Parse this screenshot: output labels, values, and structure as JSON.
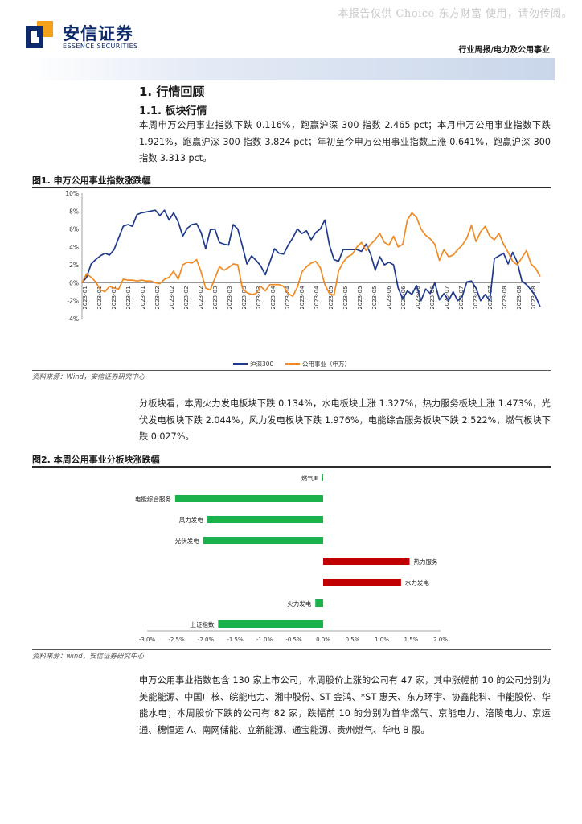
{
  "watermark": "本报告仅供 Choice 东方财富 使用，请勿传阅。",
  "brand": {
    "name_cn": "安信证券",
    "name_en": "ESSENCE SECURITIES"
  },
  "header": {
    "category": "行业周报/电力及公用事业"
  },
  "section": {
    "h1": "1. 行情回顾",
    "h2": "1.1. 板块行情"
  },
  "paragraphs": {
    "p1": "本周申万公用事业指数下跌 0.116%，跑赢沪深 300 指数 2.465 pct；本月申万公用事业指数下跌 1.921%，跑赢沪深 300 指数 3.824 pct；年初至今申万公用事业指数上涨 0.641%，跑赢沪深 300 指数 3.313 pct。",
    "p2": "分板块看，本周火力发电板块下跌 0.134%，水电板块上涨 1.327%，热力服务板块上涨 1.473%，光伏发电板块下跌 2.044%，风力发电板块下跌 1.976%，电能综合服务板块下跌 2.522%，燃气板块下跌 0.027%。",
    "p3": "申万公用事业指数包含 130 家上市公司，本周股价上涨的公司有 47 家，其中涨幅前 10 的公司分别为美能能源、中国广核、皖能电力、湘中股份、ST 金鸿、*ST 惠天、东方环宇、协鑫能科、申能股份、华能水电；本周股价下跌的公司有 82 家，跌幅前 10 的分别为首华燃气、京能电力、涪陵电力、京运通、穗恒运 A、南网储能、立新能源、通宝能源、贵州燃气、华电 B 股。"
  },
  "fig1": {
    "title": "图1. 申万公用事业指数涨跌幅",
    "source": "资料来源：Wind，安信证券研究中心"
  },
  "fig2": {
    "title": "图2. 本周公用事业分板块涨跌幅",
    "source": "资料来源：wind，安信证券研究中心"
  },
  "colors": {
    "hs300": "#1f3a8a",
    "utility": "#f08a24",
    "negative": "#19b24b",
    "positive": "#c00000",
    "brand": "#0d2a6b"
  },
  "chart_data": [
    {
      "type": "line",
      "title": "",
      "ylim": [
        -4,
        10
      ],
      "yticks": [
        "10%",
        "8%",
        "6%",
        "4%",
        "2%",
        "0%",
        "-2%",
        "-4%"
      ],
      "xticks": [
        "2023-01",
        "2023-01",
        "2023-01",
        "2023-01",
        "2023-01",
        "2023-02",
        "2023-02",
        "2023-02",
        "2023-02",
        "2023-03",
        "2023-03",
        "2023-03",
        "2023-03",
        "2023-04",
        "2023-04",
        "2023-04",
        "2023-04",
        "2023-05",
        "2023-05",
        "2023-05",
        "2023-05",
        "2023-06",
        "2023-06",
        "2023-06",
        "2023-06",
        "2023-07",
        "2023-07",
        "2023-07",
        "2023-07",
        "2023-08",
        "2023-08",
        "2023-08"
      ],
      "x_index_max": 100,
      "legend_position": "bottom",
      "series": [
        {
          "name": "沪深300",
          "color": "#1f3a8a",
          "points": [
            [
              0,
              0
            ],
            [
              1,
              0.6
            ],
            [
              2,
              2.1
            ],
            [
              3,
              2.6
            ],
            [
              4,
              3.0
            ],
            [
              5,
              3.3
            ],
            [
              6,
              3.1
            ],
            [
              7,
              3.7
            ],
            [
              8,
              5.0
            ],
            [
              9,
              6.3
            ],
            [
              10,
              6.5
            ],
            [
              11,
              6.3
            ],
            [
              12,
              7.6
            ],
            [
              13,
              7.8
            ],
            [
              14,
              7.9
            ],
            [
              15,
              8.0
            ],
            [
              16,
              8.1
            ],
            [
              17,
              7.5
            ],
            [
              18,
              8.1
            ],
            [
              19,
              7.0
            ],
            [
              20,
              7.8
            ],
            [
              21,
              6.8
            ],
            [
              22,
              5.2
            ],
            [
              23,
              6.1
            ],
            [
              24,
              6.5
            ],
            [
              25,
              6.6
            ],
            [
              26,
              5.6
            ],
            [
              27,
              3.8
            ],
            [
              28,
              5.9
            ],
            [
              29,
              6.0
            ],
            [
              30,
              4.5
            ],
            [
              31,
              4.3
            ],
            [
              32,
              4.2
            ],
            [
              33,
              6.5
            ],
            [
              34,
              6.0
            ],
            [
              35,
              4.1
            ],
            [
              36,
              2.1
            ],
            [
              37,
              3.0
            ],
            [
              38,
              2.5
            ],
            [
              39,
              1.9
            ],
            [
              40,
              0.9
            ],
            [
              41,
              2.3
            ],
            [
              42,
              3.8
            ],
            [
              43,
              3.3
            ],
            [
              44,
              3.2
            ],
            [
              45,
              4.2
            ],
            [
              46,
              5.0
            ],
            [
              47,
              6.0
            ],
            [
              48,
              5.5
            ],
            [
              49,
              5.8
            ],
            [
              50,
              4.8
            ],
            [
              51,
              5.6
            ],
            [
              52,
              6.0
            ],
            [
              53,
              7.0
            ],
            [
              54,
              4.2
            ],
            [
              55,
              2.6
            ],
            [
              56,
              2.4
            ],
            [
              57,
              3.7
            ],
            [
              58,
              3.7
            ],
            [
              59,
              3.7
            ],
            [
              60,
              3.7
            ],
            [
              61,
              3.5
            ],
            [
              62,
              4.3
            ],
            [
              63,
              3.2
            ],
            [
              64,
              1.4
            ],
            [
              65,
              2.9
            ],
            [
              66,
              2.0
            ],
            [
              67,
              2.3
            ],
            [
              68,
              2.0
            ],
            [
              69,
              -0.6
            ],
            [
              70,
              -1.8
            ],
            [
              71,
              -0.9
            ],
            [
              72,
              -1.3
            ],
            [
              73,
              -0.3
            ],
            [
              74,
              -2.0
            ],
            [
              75,
              -0.7
            ],
            [
              76,
              -1.2
            ],
            [
              77,
              0.0
            ],
            [
              78,
              -1.9
            ],
            [
              79,
              -1.2
            ],
            [
              80,
              -2.0
            ],
            [
              81,
              -1.0
            ],
            [
              82,
              -2.0
            ],
            [
              83,
              -1.5
            ],
            [
              84,
              0.1
            ],
            [
              85,
              0.2
            ],
            [
              86,
              -0.6
            ],
            [
              87,
              -2.0
            ],
            [
              88,
              -1.3
            ],
            [
              89,
              -2.0
            ],
            [
              90,
              2.7
            ],
            [
              91,
              3.0
            ],
            [
              92,
              3.3
            ],
            [
              93,
              2.1
            ],
            [
              94,
              3.4
            ],
            [
              95,
              2.3
            ],
            [
              96,
              0.2
            ],
            [
              97,
              -0.2
            ],
            [
              98,
              -0.8
            ],
            [
              99,
              -1.5
            ],
            [
              100,
              -2.7
            ]
          ]
        },
        {
          "name": "公用事业（申万）",
          "color": "#f08a24",
          "points": [
            [
              0,
              0
            ],
            [
              1,
              1.0
            ],
            [
              2,
              0.6
            ],
            [
              3,
              0.1
            ],
            [
              4,
              -0.8
            ],
            [
              5,
              -1.0
            ],
            [
              6,
              -0.4
            ],
            [
              7,
              -0.6
            ],
            [
              8,
              -0.7
            ],
            [
              9,
              0.4
            ],
            [
              10,
              0.3
            ],
            [
              11,
              0.3
            ],
            [
              12,
              0.2
            ],
            [
              13,
              0.3
            ],
            [
              14,
              0.2
            ],
            [
              15,
              0.2
            ],
            [
              16,
              0.0
            ],
            [
              17,
              -0.1
            ],
            [
              18,
              0.4
            ],
            [
              19,
              0.6
            ],
            [
              20,
              1.3
            ],
            [
              21,
              0.4
            ],
            [
              22,
              2.0
            ],
            [
              23,
              2.3
            ],
            [
              24,
              2.2
            ],
            [
              25,
              2.6
            ],
            [
              26,
              1.2
            ],
            [
              27,
              -0.6
            ],
            [
              28,
              -0.8
            ],
            [
              29,
              0.5
            ],
            [
              30,
              1.8
            ],
            [
              31,
              1.4
            ],
            [
              32,
              1.7
            ],
            [
              33,
              2.1
            ],
            [
              34,
              2.0
            ],
            [
              35,
              -0.6
            ],
            [
              36,
              -1.1
            ],
            [
              37,
              -1.3
            ],
            [
              38,
              -1.2
            ],
            [
              39,
              -0.4
            ],
            [
              40,
              -0.9
            ],
            [
              41,
              -0.2
            ],
            [
              42,
              -0.2
            ],
            [
              43,
              -0.2
            ],
            [
              44,
              -0.4
            ],
            [
              45,
              -1.2
            ],
            [
              46,
              -1.5
            ],
            [
              47,
              -0.5
            ],
            [
              48,
              1.2
            ],
            [
              49,
              1.8
            ],
            [
              50,
              2.2
            ],
            [
              51,
              2.4
            ],
            [
              52,
              1.7
            ],
            [
              53,
              -0.2
            ],
            [
              54,
              -1.2
            ],
            [
              55,
              -1.4
            ],
            [
              56,
              1.3
            ],
            [
              57,
              2.3
            ],
            [
              58,
              2.9
            ],
            [
              59,
              3.2
            ],
            [
              60,
              4.0
            ],
            [
              61,
              4.5
            ],
            [
              62,
              3.6
            ],
            [
              63,
              4.3
            ],
            [
              64,
              4.8
            ],
            [
              65,
              5.5
            ],
            [
              66,
              4.5
            ],
            [
              67,
              4.2
            ],
            [
              68,
              5.2
            ],
            [
              69,
              4.0
            ],
            [
              70,
              4.3
            ],
            [
              71,
              7.0
            ],
            [
              72,
              7.8
            ],
            [
              73,
              7.3
            ],
            [
              74,
              6.0
            ],
            [
              75,
              5.3
            ],
            [
              76,
              4.9
            ],
            [
              77,
              4.3
            ],
            [
              78,
              2.5
            ],
            [
              79,
              3.7
            ],
            [
              80,
              2.9
            ],
            [
              81,
              3.1
            ],
            [
              82,
              3.7
            ],
            [
              83,
              4.2
            ],
            [
              84,
              5.0
            ],
            [
              85,
              6.4
            ],
            [
              86,
              4.6
            ],
            [
              87,
              5.7
            ],
            [
              88,
              6.3
            ],
            [
              89,
              5.2
            ],
            [
              90,
              4.8
            ],
            [
              91,
              5.5
            ],
            [
              92,
              4.3
            ],
            [
              93,
              3.4
            ],
            [
              94,
              2.4
            ],
            [
              95,
              2.0
            ],
            [
              96,
              2.8
            ],
            [
              97,
              3.6
            ],
            [
              98,
              2.1
            ],
            [
              99,
              1.6
            ],
            [
              100,
              0.7
            ]
          ]
        }
      ]
    },
    {
      "type": "bar",
      "orientation": "horizontal",
      "title": "",
      "xlim": [
        -3.0,
        2.0
      ],
      "xticks": [
        "-3.0%",
        "-2.5%",
        "-2.0%",
        "-1.5%",
        "-1.0%",
        "-0.5%",
        "0.0%",
        "0.5%",
        "1.0%",
        "1.5%",
        "2.0%"
      ],
      "categories": [
        "燃气Ⅲ",
        "电能综合服务",
        "风力发电",
        "光伏发电",
        "热力服务",
        "水力发电",
        "火力发电",
        "上证指数"
      ],
      "values": [
        -0.027,
        -2.522,
        -1.976,
        -2.044,
        1.473,
        1.327,
        -0.134,
        -1.79
      ]
    }
  ]
}
